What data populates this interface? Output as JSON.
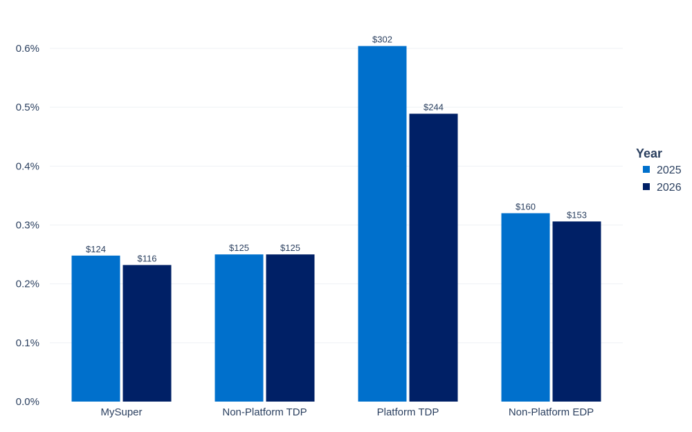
{
  "chart_data": {
    "type": "bar",
    "title": "",
    "xlabel": "",
    "ylabel": "",
    "categories": [
      "MySuper",
      "Non-Platform TDP",
      "Platform TDP",
      "Non-Platform EDP"
    ],
    "ylim": [
      0,
      0.6
    ],
    "yticks": [
      0.0,
      0.1,
      0.2,
      0.3,
      0.4,
      0.5,
      0.6
    ],
    "ytick_labels": [
      "0.0%",
      "0.1%",
      "0.2%",
      "0.3%",
      "0.4%",
      "0.5%",
      "0.6%"
    ],
    "grid": true,
    "legend": {
      "title": "Year",
      "placement": "right"
    },
    "series": [
      {
        "name": "2025",
        "color": "#0070cc",
        "values": [
          0.248,
          0.25,
          0.604,
          0.32
        ],
        "labels": [
          "$124",
          "$125",
          "$302",
          "$160"
        ]
      },
      {
        "name": "2026",
        "color": "#002066",
        "values": [
          0.232,
          0.25,
          0.489,
          0.306
        ],
        "labels": [
          "$116",
          "$125",
          "$244",
          "$153"
        ]
      }
    ]
  }
}
